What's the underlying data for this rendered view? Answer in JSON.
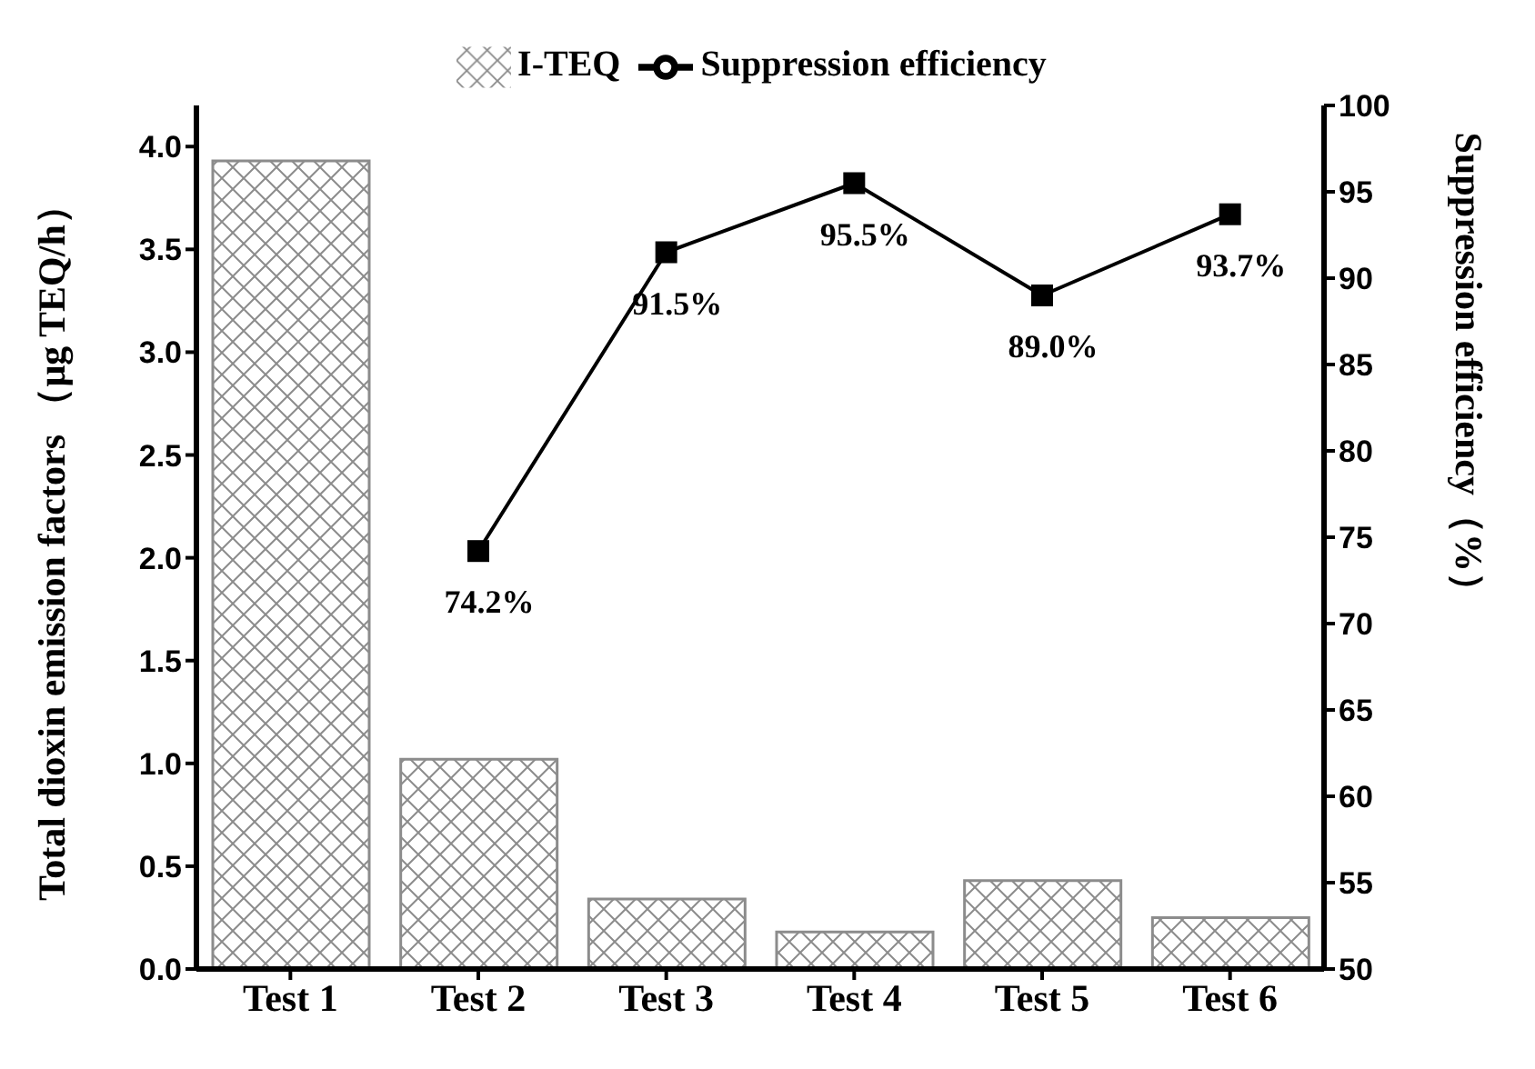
{
  "chart_data": {
    "type": "bar",
    "categories": [
      "Test 1",
      "Test 2",
      "Test 3",
      "Test 4",
      "Test 5",
      "Test 6"
    ],
    "ylabel": "Total dioxin emission factors （μg TEQ/h）",
    "y2label": "Suppression efficiency（%）",
    "series": [
      {
        "name": "I-TEQ",
        "color": "#8c8c8c",
        "values": [
          3.93,
          1.02,
          0.34,
          0.18,
          0.43,
          0.25
        ]
      },
      {
        "name": "Suppression efficiency",
        "type": "line",
        "axis": "y2",
        "color": "#000000",
        "marker": "square",
        "values": [
          null,
          74.2,
          91.5,
          95.5,
          89.0,
          93.7
        ],
        "value_labels": [
          null,
          "74.2%",
          "91.5%",
          "95.5%",
          "89.0%",
          "93.7%"
        ]
      }
    ],
    "ylim": [
      0,
      4.2
    ],
    "yticks": [
      {
        "value": 0,
        "label": "0.0"
      },
      {
        "value": 0.5,
        "label": "0.5"
      },
      {
        "value": 1,
        "label": "1.0"
      },
      1.5,
      {
        "value": 2,
        "label": "2.0"
      },
      2.5,
      {
        "value": 3,
        "label": "3.0"
      },
      3.5,
      {
        "value": 4,
        "label": "4.0"
      }
    ],
    "y2lim": [
      50,
      100
    ],
    "y2ticks": [
      50,
      55,
      60,
      65,
      70,
      75,
      80,
      85,
      90,
      95,
      100
    ],
    "legend": "top",
    "grid": false
  }
}
